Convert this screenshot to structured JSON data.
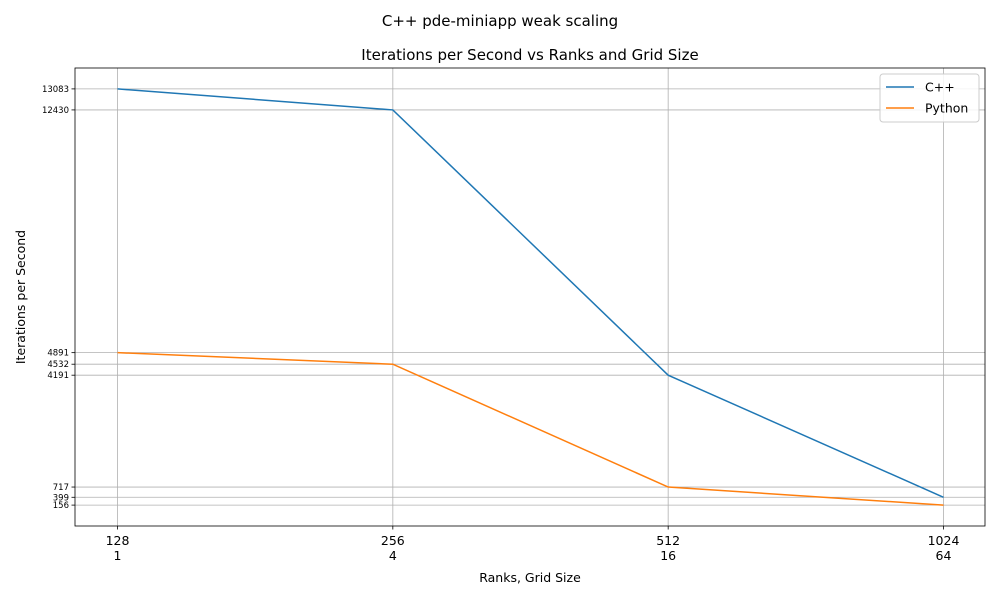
{
  "suptitle": "C++ pde-miniapp weak scaling",
  "chart_data": {
    "type": "line",
    "title": "Iterations per Second vs Ranks and Grid Size",
    "xlabel": "Ranks, Grid Size",
    "ylabel": "Iterations per Second",
    "categories": [
      "128\n1",
      "256\n4",
      "512\n16",
      "1024\n64"
    ],
    "category_lines": [
      [
        "128",
        "1"
      ],
      [
        "256",
        "4"
      ],
      [
        "512",
        "16"
      ],
      [
        "1024",
        "64"
      ]
    ],
    "yticks": [
      156,
      399,
      717,
      4191,
      4532,
      4891,
      12430,
      13083
    ],
    "ylim": [
      -493,
      13732
    ],
    "grid": true,
    "legend_position": "top-right",
    "series": [
      {
        "name": "C++",
        "values": [
          13083,
          12430,
          4191,
          399
        ],
        "color": "#1f77b4"
      },
      {
        "name": "Python",
        "values": [
          4891,
          4532,
          717,
          156
        ],
        "color": "#ff7f0e"
      }
    ]
  }
}
